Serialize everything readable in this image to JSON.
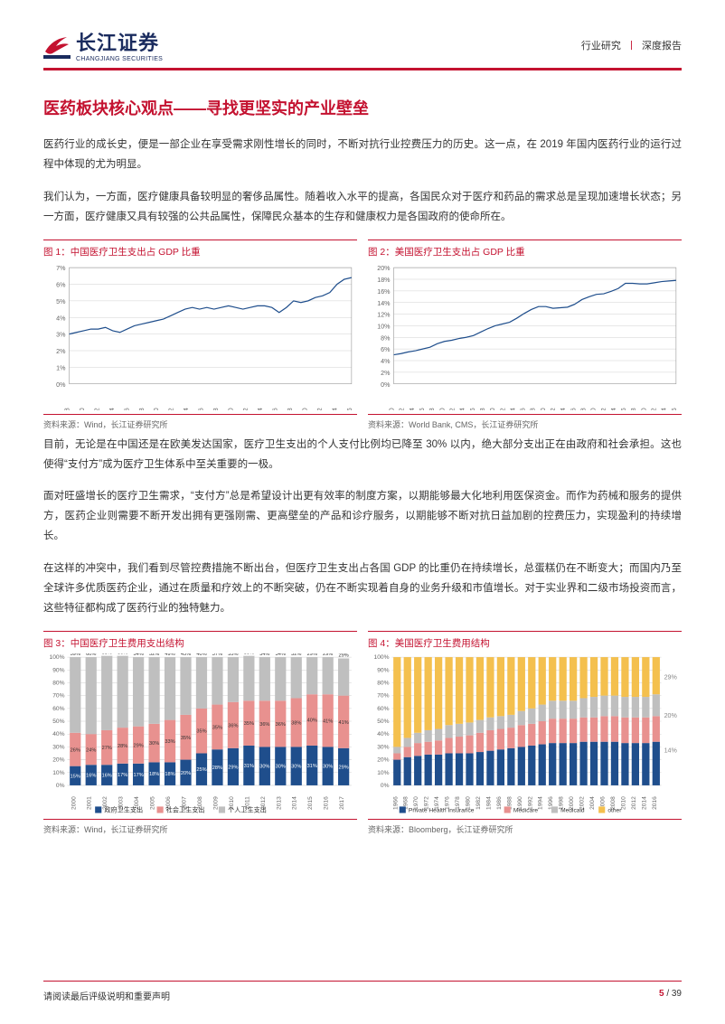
{
  "header": {
    "logo_cn": "长江证券",
    "logo_en": "CHANGJIANG SECURITIES",
    "right_a": "行业研究",
    "right_b": "深度报告"
  },
  "title": "医药板块核心观点——寻找更坚实的产业壁垒",
  "para1": "医药行业的成长史，便是一部企业在享受需求刚性增长的同时，不断对抗行业控费压力的历史。这一点，在 2019 年国内医药行业的运行过程中体现的尤为明显。",
  "para2": "我们认为，一方面，医疗健康具备较明显的奢侈品属性。随着收入水平的提高，各国民众对于医疗和药品的需求总是呈现加速增长状态；另一方面，医疗健康又具有较强的公共品属性，保障民众基本的生存和健康权力是各国政府的使命所在。",
  "para3": "目前，无论是在中国还是在欧美发达国家，医疗卫生支出的个人支付比例均已降至 30% 以内，绝大部分支出正在由政府和社会承担。这也使得“支付方”成为医疗卫生体系中至关重要的一极。",
  "para4": "面对旺盛增长的医疗卫生需求，“支付方”总是希望设计出更有效率的制度方案，以期能够最大化地利用医保资金。而作为药械和服务的提供方，医药企业则需要不断开发出拥有更强刚需、更高壁垒的产品和诊疗服务，以期能够不断对抗日益加剧的控费压力，实现盈利的持续增长。",
  "para5": "在这样的冲突中，我们看到尽管控费措施不断出台，但医疗卫生支出占各国 GDP 的比重仍在持续增长，总蛋糕仍在不断变大；而国内乃至全球许多优质医药企业，通过在质量和疗效上的不断突破，仍在不断实现着自身的业务升级和市值增长。对于实业界和二级市场投资而言，这些特征都构成了医药行业的独特魅力。",
  "chart1": {
    "title": "图 1：中国医疗卫生支出占 GDP 比重",
    "source": "资料来源：Wind，长江证券研究所",
    "type": "line",
    "color": "#1f4e8c",
    "background": "#ffffff",
    "grid_color": "#d0d0d0",
    "xlim": [
      1978,
      2016
    ],
    "ylim": [
      0,
      7
    ],
    "ytick_step": 1,
    "ytick_suffix": "%",
    "xticks": [
      1978,
      1980,
      1982,
      1984,
      1986,
      1988,
      1990,
      1992,
      1994,
      1996,
      1998,
      2000,
      2002,
      2004,
      2006,
      2008,
      2010,
      2012,
      2014,
      2016
    ],
    "values": [
      3.0,
      3.1,
      3.2,
      3.3,
      3.3,
      3.4,
      3.2,
      3.1,
      3.3,
      3.5,
      3.6,
      3.7,
      3.8,
      3.9,
      4.1,
      4.3,
      4.5,
      4.6,
      4.5,
      4.6,
      4.5,
      4.6,
      4.7,
      4.6,
      4.5,
      4.6,
      4.7,
      4.7,
      4.6,
      4.3,
      4.6,
      5.0,
      4.9,
      5.0,
      5.2,
      5.3,
      5.5,
      6.0,
      6.3,
      6.4
    ],
    "label_fontsize": 7,
    "line_width": 1.2
  },
  "chart2": {
    "title": "图 2：美国医疗卫生支出占 GDP 比重",
    "source": "资料来源：World Bank, CMS，长江证券研究所",
    "type": "line",
    "color": "#1f4e8c",
    "background": "#ffffff",
    "grid_color": "#d0d0d0",
    "xlim": [
      1960,
      2016
    ],
    "ylim": [
      0,
      20
    ],
    "ytick_step": 2,
    "ytick_suffix": "%",
    "xticks": [
      1960,
      1962,
      1964,
      1966,
      1968,
      1970,
      1972,
      1974,
      1976,
      1978,
      1980,
      1982,
      1984,
      1986,
      1988,
      1990,
      1992,
      1994,
      1996,
      1998,
      2000,
      2002,
      2004,
      2006,
      2008,
      2010,
      2012,
      2014,
      2016
    ],
    "values": [
      5.0,
      5.2,
      5.5,
      5.7,
      6.0,
      6.3,
      6.9,
      7.3,
      7.5,
      7.8,
      8.0,
      8.3,
      8.9,
      9.5,
      10.0,
      10.3,
      10.6,
      11.3,
      12.1,
      12.8,
      13.3,
      13.3,
      13.0,
      13.1,
      13.2,
      13.7,
      14.5,
      15.0,
      15.4,
      15.5,
      15.9,
      16.4,
      17.3,
      17.3,
      17.2,
      17.2,
      17.4,
      17.6,
      17.7,
      17.8
    ],
    "label_fontsize": 7,
    "line_width": 1.2
  },
  "chart3": {
    "title": "图 3：中国医疗卫生费用支出结构",
    "source": "资料来源：Wind，长江证券研究所",
    "type": "stacked_bar",
    "background": "#ffffff",
    "grid_color": "#d0d0d0",
    "ylim": [
      0,
      100
    ],
    "ytick_step": 10,
    "ytick_suffix": "%",
    "label_fontsize": 6.5,
    "xticks": [
      2000,
      2001,
      2002,
      2003,
      2004,
      2005,
      2006,
      2007,
      2008,
      2009,
      2010,
      2011,
      2012,
      2013,
      2014,
      2015,
      2016,
      2017
    ],
    "legend": [
      "政府卫生支出",
      "社会卫生支出",
      "个人卫生支出"
    ],
    "colors": [
      "#1f4e8c",
      "#e8918f",
      "#bfbfbf"
    ],
    "series": {
      "gov": [
        15,
        16,
        16,
        17,
        17,
        18,
        18,
        20,
        25,
        28,
        29,
        31,
        30,
        30,
        30,
        31,
        30,
        29
      ],
      "social": [
        26,
        24,
        27,
        28,
        29,
        30,
        33,
        35,
        35,
        35,
        36,
        35,
        36,
        36,
        38,
        40,
        41,
        41
      ],
      "personal": [
        59,
        60,
        58,
        56,
        54,
        52,
        49,
        45,
        40,
        37,
        35,
        35,
        34,
        34,
        32,
        29,
        29,
        29
      ]
    },
    "annot": {
      "top": [
        "59%",
        "60%",
        "58%",
        "56%",
        "54%",
        "52%",
        "49%",
        "45%",
        "40%",
        "37%",
        "35%",
        "35%",
        "34%",
        "34%",
        "32%",
        "29%",
        "29%",
        "29%"
      ],
      "mid": [
        "26%",
        "24%",
        "27%",
        "28%",
        "29%",
        "30%",
        "33%",
        "35%",
        "35%",
        "35%",
        "36%",
        "35%",
        "36%",
        "36%",
        "38%",
        "40%",
        "41%",
        "41%"
      ],
      "bot": [
        "15%",
        "16%",
        "16%",
        "17%",
        "17%",
        "18%",
        "18%",
        "20%",
        "25%",
        "28%",
        "29%",
        "31%",
        "30%",
        "30%",
        "30%",
        "31%",
        "30%",
        "29%"
      ]
    }
  },
  "chart4": {
    "title": "图 4：美国医疗卫生费用结构",
    "source": "资料来源：Bloomberg，长江证券研究所",
    "type": "stacked_bar",
    "background": "#ffffff",
    "grid_color": "#d0d0d0",
    "ylim": [
      0,
      100
    ],
    "ytick_step": 10,
    "ytick_suffix": "%",
    "label_fontsize": 6.5,
    "xticks": [
      1966,
      1968,
      1970,
      1972,
      1974,
      1976,
      1978,
      1980,
      1982,
      1984,
      1986,
      1988,
      1990,
      1992,
      1994,
      1996,
      1998,
      2000,
      2002,
      2004,
      2006,
      2008,
      2010,
      2012,
      2014,
      2016
    ],
    "legend": [
      "Private Health Insurance",
      "Medicare",
      "Medicaid",
      "other"
    ],
    "colors": [
      "#1f4e8c",
      "#e8918f",
      "#bfbfbf",
      "#f4c04e"
    ],
    "series_private": [
      20,
      22,
      23,
      24,
      24,
      25,
      25,
      25,
      26,
      27,
      28,
      29,
      30,
      31,
      32,
      33,
      33,
      33,
      34,
      34,
      34,
      34,
      33,
      33,
      33,
      34
    ],
    "series_medicare": [
      5,
      8,
      10,
      10,
      11,
      12,
      13,
      14,
      15,
      16,
      16,
      16,
      17,
      17,
      18,
      19,
      19,
      19,
      19,
      19,
      20,
      20,
      20,
      20,
      20,
      20
    ],
    "series_medicaid": [
      5,
      7,
      8,
      9,
      9,
      10,
      10,
      10,
      10,
      10,
      10,
      10,
      11,
      12,
      13,
      14,
      14,
      14,
      15,
      16,
      16,
      16,
      16,
      16,
      16,
      17
    ],
    "series_other": [
      70,
      63,
      59,
      57,
      56,
      53,
      52,
      51,
      49,
      47,
      46,
      45,
      42,
      40,
      37,
      34,
      34,
      34,
      32,
      31,
      30,
      30,
      31,
      31,
      31,
      29
    ],
    "annot_right": [
      {
        "label": "29%",
        "y": 85,
        "color": "#888"
      },
      {
        "label": "20%",
        "y": 55,
        "color": "#888"
      },
      {
        "label": "14%",
        "y": 28,
        "color": "#888"
      }
    ]
  },
  "footer": {
    "left": "请阅读最后评级说明和重要声明",
    "page": "5",
    "total": "39"
  }
}
